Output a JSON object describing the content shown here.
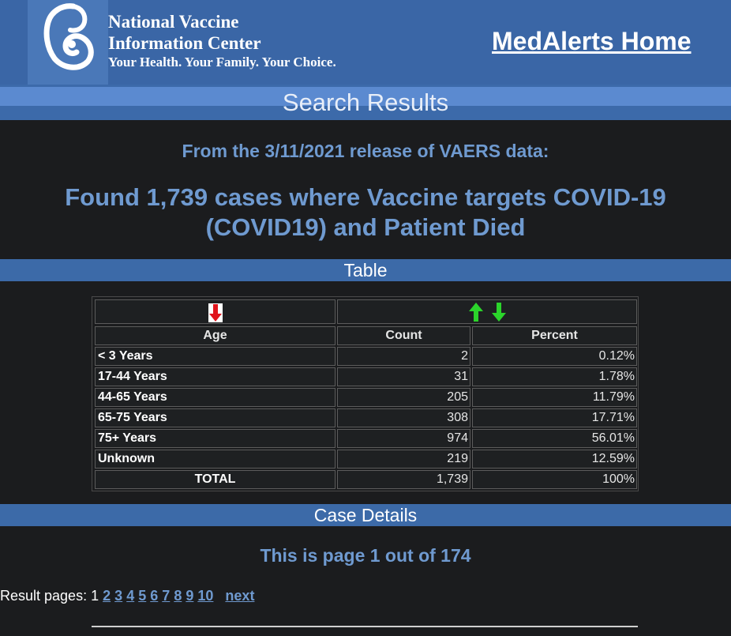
{
  "header": {
    "org_line1": "National Vaccine",
    "org_line2": "Information Center",
    "tagline": "Your Health. Your Family. Your Choice.",
    "home_link": "MedAlerts Home"
  },
  "search_results_title": "Search Results",
  "release_text": "From the 3/11/2021 release of VAERS data:",
  "found_text": "Found 1,739 cases where Vaccine targets COVID-19 (COVID19) and Patient Died",
  "table_section_title": "Table",
  "table": {
    "headers": [
      "Age",
      "Count",
      "Percent"
    ],
    "rows": [
      {
        "label": "< 3 Years",
        "count": "2",
        "percent": "0.12%"
      },
      {
        "label": "17-44 Years",
        "count": "31",
        "percent": "1.78%"
      },
      {
        "label": "44-65 Years",
        "count": "205",
        "percent": "11.79%"
      },
      {
        "label": "65-75 Years",
        "count": "308",
        "percent": "17.71%"
      },
      {
        "label": "75+ Years",
        "count": "974",
        "percent": "56.01%"
      },
      {
        "label": "Unknown",
        "count": "219",
        "percent": "12.59%"
      }
    ],
    "total": {
      "label": "TOTAL",
      "count": "1,739",
      "percent": "100%"
    }
  },
  "case_details_title": "Case Details",
  "page_info": "This is page 1 out of 174",
  "pager": {
    "label": "Result pages:",
    "current": "1",
    "pages": [
      "2",
      "3",
      "4",
      "5",
      "6",
      "7",
      "8",
      "9",
      "10"
    ],
    "next": "next"
  },
  "colors": {
    "header_bg": "#3a66a6",
    "accent_text": "#6f9ad0",
    "sort_down_red": "#e0141c",
    "sort_up_green": "#2bd42b"
  }
}
